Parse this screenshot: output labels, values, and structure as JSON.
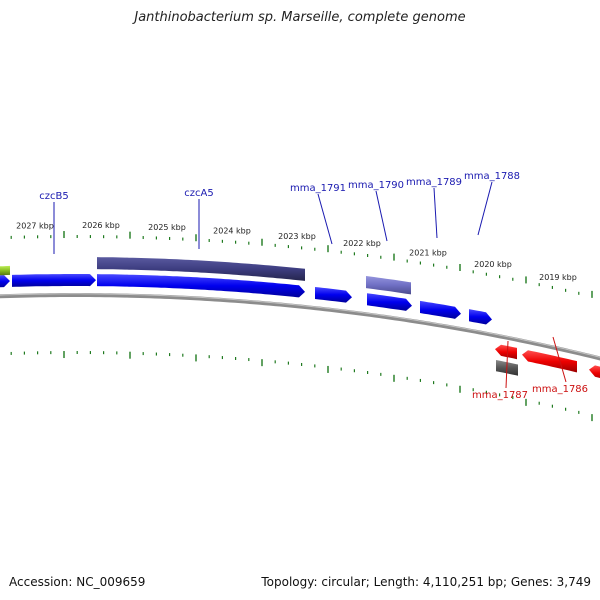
{
  "title": "Janthinobacterium sp. Marseille, complete genome",
  "accession_label": "Accession: NC_009659",
  "summary_label": "Topology: circular; Length: 4,110,251 bp; Genes: 3,749",
  "colors": {
    "forward_gene": "#0000ee",
    "reverse_gene": "#ee0000",
    "forward_label": "#1a1ab0",
    "reverse_label": "#cc1111",
    "tick": "#1f7a1f",
    "backbone": "#8c8c8c",
    "feature_dark": "#3d3d80",
    "feature_light": "#6f6fc4",
    "feature_grey": "#555555",
    "feature_green": "#88bb22"
  },
  "scale_labels": [
    "2027 kbp",
    "2026 kbp",
    "2025 kbp",
    "2024 kbp",
    "2023 kbp",
    "2022 kbp",
    "2021 kbp",
    "2020 kbp",
    "2019 kbp"
  ],
  "forward_gene_labels": [
    "czcB5",
    "czcA5",
    "mma_1791",
    "mma_1790",
    "mma_1789",
    "mma_1788"
  ],
  "reverse_gene_labels": [
    "mma_1787",
    "mma_1786"
  ]
}
